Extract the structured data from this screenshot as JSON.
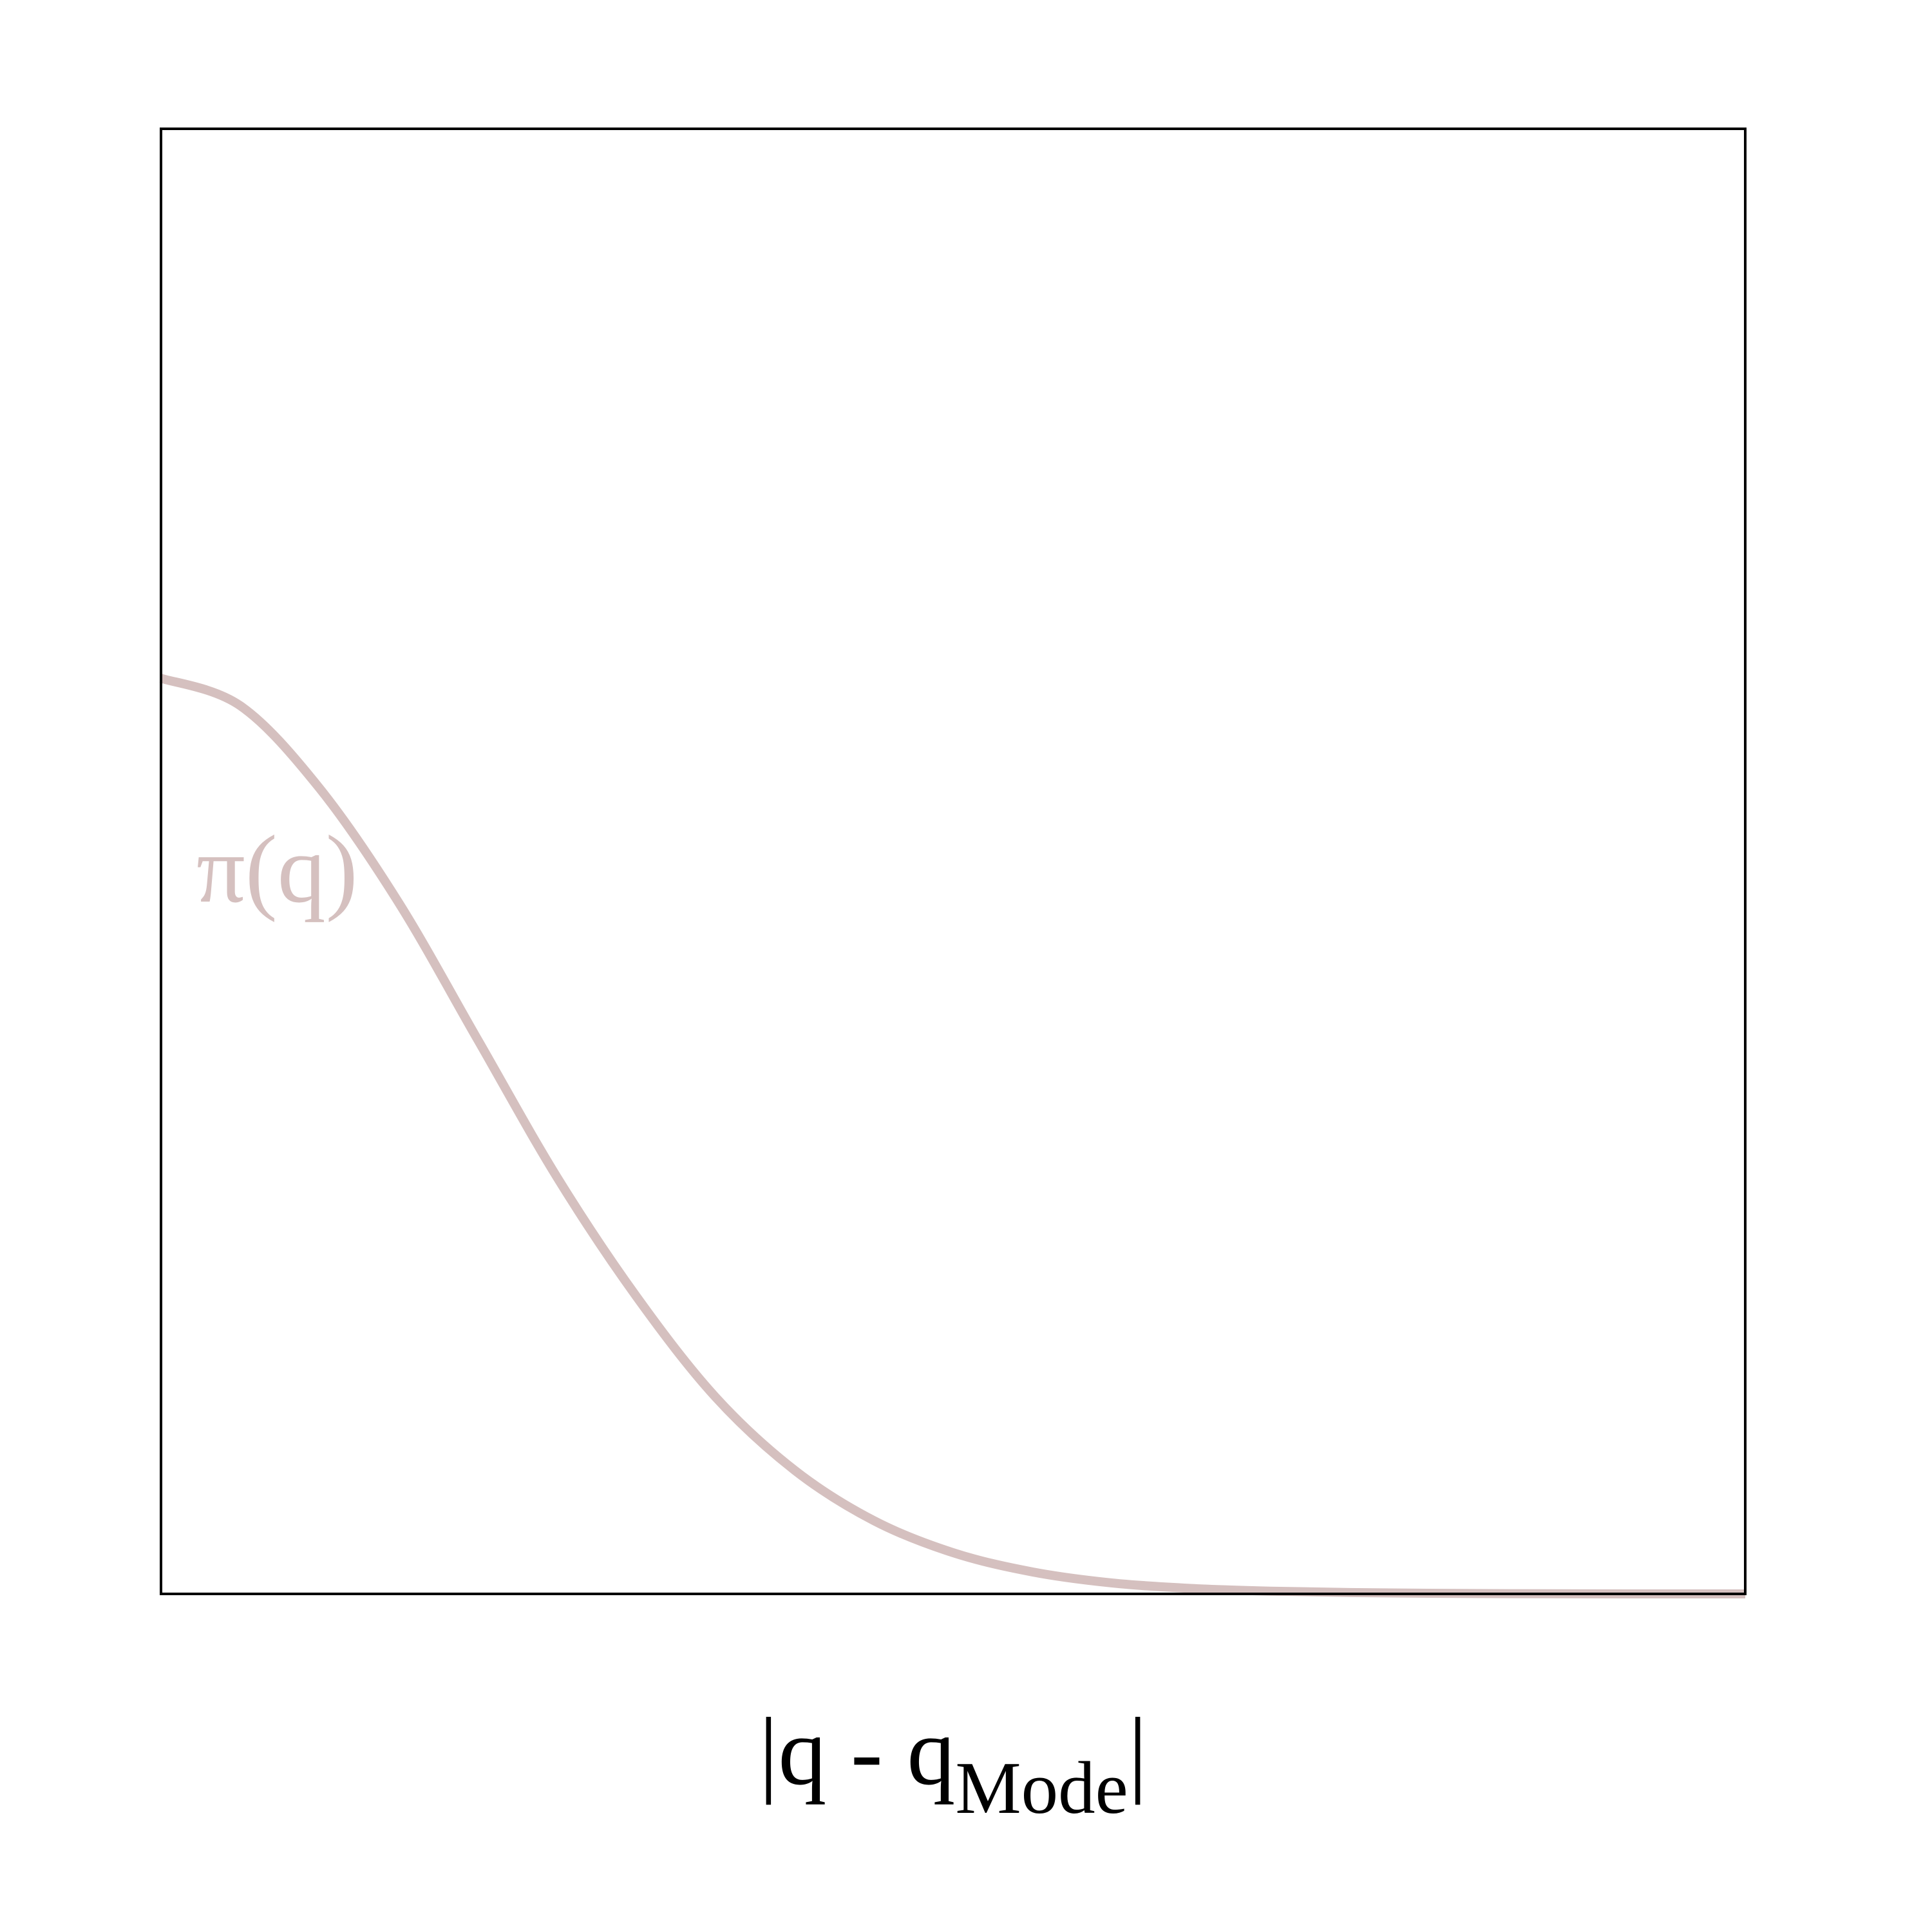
{
  "chart_data": {
    "type": "line",
    "title": "",
    "xlabel": {
      "main": "|q - q",
      "subscript": "Mode",
      "closing": "|"
    },
    "ylabel": "",
    "grid": false,
    "show_ticks": false,
    "xlim": [
      0,
      5
    ],
    "ylim": [
      0,
      1.6
    ],
    "colors": {
      "axes": "#000000",
      "series": "#d5c0bf",
      "label": "#d5c0bf"
    },
    "series": [
      {
        "name": "π(q)",
        "x": [
          0,
          0.25,
          0.5,
          0.75,
          1.0,
          1.25,
          1.5,
          1.75,
          2.0,
          2.25,
          2.5,
          2.75,
          3.0,
          3.25,
          3.5,
          3.75,
          4.0,
          4.25,
          4.5,
          4.75,
          5.0
        ],
        "y": [
          1.0,
          0.97,
          0.88,
          0.755,
          0.605,
          0.455,
          0.325,
          0.215,
          0.135,
          0.08,
          0.045,
          0.024,
          0.012,
          0.006,
          0.003,
          0.0015,
          0.0007,
          0.0003,
          0.0001,
          0.0,
          0.0
        ]
      }
    ]
  }
}
